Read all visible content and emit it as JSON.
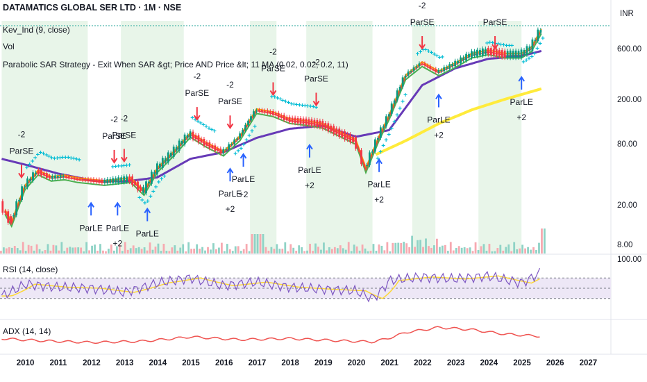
{
  "header": {
    "title": "DATAMATICS GLOBAL SER LTD · 1M · NSE",
    "indicator_1": "Kev_Ind (9, close)",
    "indicator_2": "Vol",
    "indicator_3": "Parabolic SAR Strategy - Exit When SAR &gt; Price AND Price &lt; 11 MA (0.02, 0.02, 0.2, 11)"
  },
  "price_axis": {
    "currency": "INR",
    "ticks": [
      "600.00",
      "200.00",
      "80.00",
      "20.00",
      "8.00"
    ]
  },
  "rsi_pane": {
    "label": "RSI (14, close)",
    "top_tick": "100.00"
  },
  "adx_pane": {
    "label": "ADX (14, 14)"
  },
  "time_axis": {
    "ticks": [
      "2010",
      "2011",
      "2012",
      "2013",
      "2014",
      "2015",
      "2016",
      "2017",
      "2018",
      "2019",
      "2020",
      "2021",
      "2022",
      "2023",
      "2024",
      "2025",
      "2026",
      "2027"
    ]
  },
  "colors": {
    "up": "#089981",
    "down": "#f23645",
    "sar_buy": "#00bcd4",
    "sar_sell": "#ff9800",
    "ma_red": "#f44336",
    "ma_orange": "#ff9800",
    "ma_green": "#4caf50",
    "ma_purple": "#673ab7",
    "ma_yellow": "#ffeb3b",
    "rsi": "#7e57c2",
    "rsi_ma": "#fdd835",
    "adx": "#ef5350",
    "shade": "#e8f5e9",
    "signal_long": "#2962ff",
    "signal_short": "#f23645"
  },
  "chart_data": {
    "type": "line",
    "title": "DATAMATICS GLOBAL SER LTD · 1M · NSE",
    "y_scale": "log",
    "ylim": [
      6,
      1100
    ],
    "xlim": [
      2009.25,
      2027.7
    ],
    "series": [
      {
        "name": "close",
        "x": [
          2009.3,
          2009.6,
          2010.0,
          2010.4,
          2010.8,
          2011.2,
          2011.6,
          2012.0,
          2012.4,
          2012.8,
          2013.2,
          2013.6,
          2014.0,
          2014.5,
          2015.0,
          2015.5,
          2016.0,
          2016.5,
          2017.0,
          2017.5,
          2018.0,
          2018.5,
          2019.0,
          2019.5,
          2020.0,
          2020.3,
          2020.7,
          2021.0,
          2021.5,
          2022.0,
          2022.5,
          2023.0,
          2023.5,
          2024.0,
          2024.5,
          2025.0,
          2025.3,
          2025.6
        ],
        "values": [
          18,
          12,
          27,
          38,
          33,
          34,
          32,
          31,
          30,
          31,
          32,
          24,
          40,
          58,
          88,
          70,
          58,
          82,
          150,
          140,
          120,
          115,
          108,
          90,
          75,
          40,
          82,
          130,
          320,
          430,
          350,
          420,
          520,
          560,
          520,
          520,
          600,
          900
        ]
      },
      {
        "name": "Kev_Ind (9, close)",
        "x": [
          2009.3,
          2010.0,
          2011.0,
          2012.0,
          2013.0,
          2014.0,
          2015.0,
          2016.0,
          2017.0,
          2018.0,
          2019.0,
          2020.0,
          2021.0,
          2022.0,
          2023.0,
          2024.0,
          2025.0,
          2025.6
        ],
        "values": [
          50,
          44,
          36,
          31,
          30,
          33,
          50,
          58,
          80,
          98,
          105,
          82,
          95,
          260,
          380,
          470,
          500,
          560
        ]
      },
      {
        "name": "11 MA",
        "x": [
          2020.6,
          2021.5,
          2022.5,
          2023.5,
          2024.5,
          2025.6
        ],
        "values": [
          55,
          75,
          110,
          150,
          190,
          240
        ]
      }
    ],
    "shaded_years": [
      2009.3,
      2011.9,
      2012.9,
      2014.8,
      2016.8,
      2017.6,
      2018.5,
      2020.5,
      2021.7,
      2022.4,
      2023.7,
      2025.0
    ],
    "signals": [
      {
        "label": "ParSE",
        "qty": "-2",
        "x": 2009.9
      },
      {
        "label": "ParSE",
        "qty": "-2",
        "x": 2012.7
      },
      {
        "label": "ParSE",
        "qty": "-2",
        "x": 2013.0
      },
      {
        "label": "ParSE",
        "qty": "-2",
        "x": 2015.2
      },
      {
        "label": "ParSE",
        "qty": "-2",
        "x": 2016.2
      },
      {
        "label": "ParSE",
        "qty": "-2",
        "x": 2017.5
      },
      {
        "label": "ParSE",
        "qty": "-2",
        "x": 2018.8
      },
      {
        "label": "ParSE",
        "qty": "-2",
        "x": 2022.0
      },
      {
        "label": "ParSE",
        "qty": "",
        "x": 2024.2
      },
      {
        "label": "ParLE",
        "qty": "",
        "x": 2012.0
      },
      {
        "label": "ParLE",
        "qty": "+2",
        "x": 2012.8
      },
      {
        "label": "ParLE",
        "qty": "",
        "x": 2013.7
      },
      {
        "label": "ParLE",
        "qty": "+2",
        "x": 2016.2
      },
      {
        "label": "ParLE",
        "qty": "+2",
        "x": 2016.6
      },
      {
        "label": "ParLE",
        "qty": "+2",
        "x": 2018.6
      },
      {
        "label": "ParLE",
        "qty": "+2",
        "x": 2020.7
      },
      {
        "label": "ParLE",
        "qty": "+2",
        "x": 2022.5
      },
      {
        "label": "ParLE",
        "qty": "+2",
        "x": 2025.0
      }
    ],
    "rsi": {
      "x": [
        2009.3,
        2010.0,
        2011.0,
        2012.0,
        2013.0,
        2014.0,
        2015.0,
        2016.0,
        2017.0,
        2018.0,
        2019.0,
        2020.0,
        2020.5,
        2021.0,
        2022.0,
        2023.0,
        2024.0,
        2025.0,
        2025.6
      ],
      "values": [
        35,
        58,
        52,
        50,
        42,
        60,
        70,
        55,
        62,
        52,
        48,
        45,
        30,
        65,
        72,
        68,
        74,
        60,
        82
      ],
      "ylim": [
        0,
        100
      ]
    },
    "adx": {
      "x": [
        2009.3,
        2010.5,
        2012.0,
        2013.5,
        2015.0,
        2016.5,
        2018.0,
        2019.5,
        2020.5,
        2021.5,
        2022.5,
        2023.5,
        2024.5,
        2025.6
      ],
      "values": [
        22,
        18,
        15,
        17,
        25,
        20,
        22,
        18,
        16,
        33,
        42,
        38,
        30,
        26
      ]
    }
  }
}
